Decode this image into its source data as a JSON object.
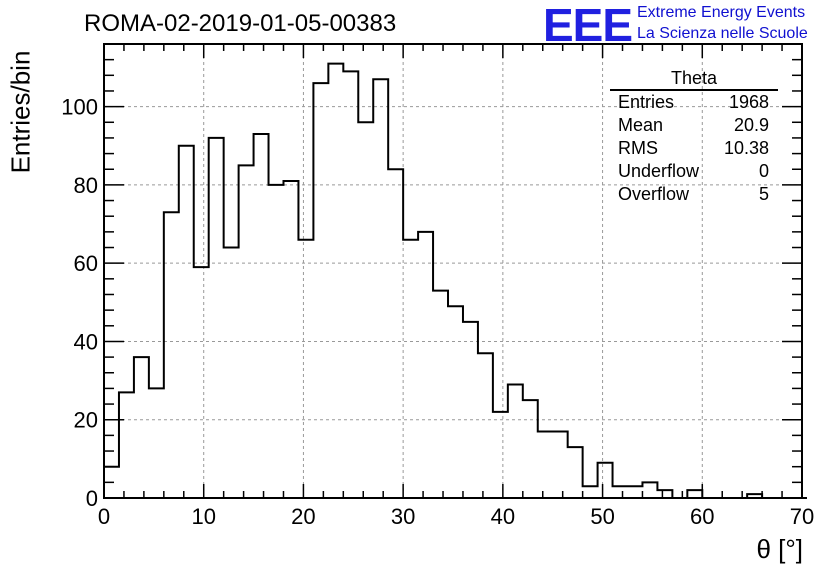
{
  "title": "ROMA-02-2019-01-05-00383",
  "logo": {
    "mark": "EEE",
    "line1": "Extreme Energy Events",
    "line2": "La Scienza nelle Scuole",
    "color": "#2020e0"
  },
  "stats": {
    "title": "Theta",
    "rows": [
      {
        "label": "Entries",
        "value": "1968"
      },
      {
        "label": "Mean",
        "value": "20.9"
      },
      {
        "label": "RMS",
        "value": "10.38"
      },
      {
        "label": "Underflow",
        "value": "0"
      },
      {
        "label": "Overflow",
        "value": "5"
      }
    ]
  },
  "chart_data": {
    "type": "bar",
    "title": "ROMA-02-2019-01-05-00383",
    "xlabel": "θ [°]",
    "ylabel": "Entries/bin",
    "xlim": [
      0,
      70
    ],
    "ylim": [
      0,
      116
    ],
    "grid": true,
    "bin_width": 1.5,
    "bin_start": 0,
    "xticks": [
      0,
      10,
      20,
      30,
      40,
      50,
      60,
      70
    ],
    "yticks": [
      0,
      20,
      40,
      60,
      80,
      100
    ],
    "values": [
      8,
      27,
      36,
      28,
      73,
      90,
      59,
      92,
      64,
      85,
      93,
      80,
      81,
      66,
      106,
      111,
      109,
      96,
      107,
      84,
      66,
      68,
      53,
      49,
      45,
      37,
      22,
      29,
      25,
      17,
      17,
      13,
      3,
      9,
      3,
      3,
      4,
      2,
      0,
      2,
      0,
      0,
      0,
      1,
      0,
      0,
      0
    ]
  }
}
